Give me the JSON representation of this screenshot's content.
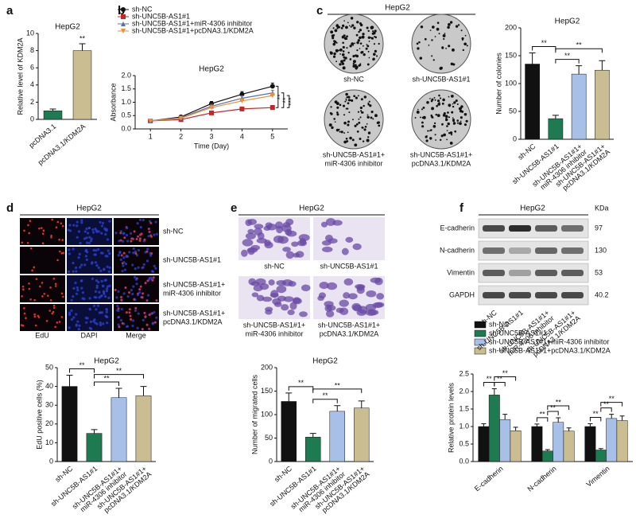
{
  "panel_labels": [
    "a",
    "b",
    "c",
    "d",
    "e",
    "f"
  ],
  "colony_assay": {
    "title": "HepG2",
    "labels": [
      [
        "sh-NC"
      ],
      [
        "sh-UNC5B-AS1#1"
      ],
      [
        "sh-UNC5B-AS1#1+",
        "miR-4306 inhibitor"
      ],
      [
        "sh-UNC5B-AS1#1+",
        "pcDNA3.1/KDM2A"
      ]
    ]
  },
  "edu_assay": {
    "title": "HepG2",
    "columns": [
      "EdU",
      "DAPI",
      "Merge"
    ],
    "rows": [
      [
        "sh-NC"
      ],
      [
        "sh-UNC5B-AS1#1"
      ],
      [
        "sh-UNC5B-AS1#1+",
        "miR-4306 inhibitor"
      ],
      [
        "sh-UNC5B-AS1#1+",
        "pcDNA3.1/KDM2A"
      ]
    ]
  },
  "transwell_assay": {
    "title": "HepG2",
    "labels": [
      [
        "sh-NC"
      ],
      [
        "sh-UNC5B-AS1#1"
      ],
      [
        "sh-UNC5B-AS1#1+",
        "miR-4306 inhibitor"
      ],
      [
        "sh-UNC5B-AS1#1+",
        "pcDNA3.1/KDM2A"
      ]
    ]
  },
  "western_blot": {
    "title": "HepG2",
    "unit": "KDa",
    "proteins": [
      "E-cadherin",
      "N-cadherin",
      "Vimentin",
      "GAPDH"
    ],
    "sizes": [
      97,
      130,
      53,
      40.2
    ],
    "lanes": [
      [
        "sh-NC"
      ],
      [
        "sh-UNC5B-AS1#1"
      ],
      [
        "sh-UNC5B-AS1#1+",
        "miR-4306 inhibitor"
      ],
      [
        "sh-UNC5B-AS1#1+",
        "pcDNA3.1/KDM2A"
      ]
    ]
  },
  "chart_data": [
    {
      "type": "bar",
      "title": "HepG2",
      "ylabel": "Relative level of KDM2A",
      "categories": [
        "pcDNA3.1",
        "pcDNA3.1/KDM2A"
      ],
      "values": [
        1,
        8
      ],
      "errors": [
        0.2,
        0.8
      ],
      "colors": [
        "#1e7a50",
        "#c9bd91"
      ],
      "ylim": [
        0,
        10
      ],
      "yticks": [
        0,
        2,
        4,
        6,
        8,
        10
      ],
      "annotations": [
        "**"
      ]
    },
    {
      "type": "line",
      "title": "HepG2",
      "xlabel": "Time (Day)",
      "ylabel": "Absorbance",
      "x": [
        1,
        2,
        3,
        4,
        5
      ],
      "xlim": [
        0.5,
        5.5
      ],
      "xticks": [
        1,
        2,
        3,
        4,
        5
      ],
      "ylim": [
        0,
        2
      ],
      "yticks": [
        {
          "value": 0,
          "label": "0.0"
        },
        0.5,
        {
          "value": 1,
          "label": "1.0"
        },
        1.5,
        {
          "value": 2,
          "label": "2.0"
        }
      ],
      "series": [
        {
          "name": "sh-NC",
          "color": "#111111",
          "marker": "circle",
          "values": [
            0.3,
            0.45,
            0.95,
            1.3,
            1.6
          ],
          "errors": [
            0.02,
            0.05,
            0.08,
            0.1,
            0.12
          ]
        },
        {
          "name": "sh-UNC5B-AS1#1",
          "color": "#c0282a",
          "marker": "square",
          "values": [
            0.3,
            0.35,
            0.6,
            0.75,
            0.8
          ],
          "errors": [
            0.02,
            0.03,
            0.05,
            0.06,
            0.08
          ]
        },
        {
          "name": "sh-UNC5B-AS1#1+miR-4306 inhibitor",
          "color": "#5a6fa8",
          "marker": "triangle",
          "values": [
            0.3,
            0.42,
            0.85,
            1.15,
            1.35
          ],
          "errors": [
            0.02,
            0.04,
            0.07,
            0.09,
            0.1
          ]
        },
        {
          "name": "sh-UNC5B-AS1#1+pcDNA3.1/KDM2A",
          "color": "#e8903a",
          "marker": "triangle-down",
          "values": [
            0.3,
            0.4,
            0.8,
            1.05,
            1.25
          ],
          "errors": [
            0.02,
            0.04,
            0.07,
            0.08,
            0.1
          ]
        }
      ],
      "annotations": [
        "**",
        "**",
        "***"
      ]
    },
    {
      "type": "bar",
      "title": "HepG2",
      "ylabel": "Number of colonies",
      "categories": [
        [
          "sh-NC"
        ],
        [
          "sh-UNC5B-AS1#1"
        ],
        [
          "sh-UNC5B-AS1#1+",
          "miR-4306 inhibitor"
        ],
        [
          "sh-UNC5B-AS1#1+",
          "pcDNA3.1/KDM2A"
        ]
      ],
      "values": [
        135,
        37,
        117,
        124
      ],
      "errors": [
        20,
        6,
        15,
        17
      ],
      "colors": [
        "#111111",
        "#1e7a50",
        "#a8c0e8",
        "#c9bd91"
      ],
      "ylim": [
        0,
        200
      ],
      "yticks": [
        0,
        50,
        100,
        150,
        200
      ],
      "annotations": [
        "**",
        "**",
        "**"
      ]
    },
    {
      "type": "bar",
      "title": "HepG2",
      "ylabel": "EdU positive cells (%)",
      "categories": [
        [
          "sh-NC"
        ],
        [
          "sh-UNC5B-AS1#1"
        ],
        [
          "sh-UNC5B-AS1#1+",
          "miR-4306 inhibitor"
        ],
        [
          "sh-UNC5B-AS1#1+",
          "pcDNA3.1/KDM2A"
        ]
      ],
      "values": [
        40,
        15,
        34,
        35
      ],
      "errors": [
        6,
        2,
        5,
        5
      ],
      "colors": [
        "#111111",
        "#1e7a50",
        "#a8c0e8",
        "#c9bd91"
      ],
      "ylim": [
        0,
        50
      ],
      "yticks": [
        0,
        10,
        20,
        30,
        40,
        50
      ],
      "annotations": [
        "**",
        "**",
        "**"
      ]
    },
    {
      "type": "bar",
      "title": "HepG2",
      "ylabel": "Number of migrated cells",
      "categories": [
        [
          "sh-NC"
        ],
        [
          "sh-UNC5B-AS1#1"
        ],
        [
          "sh-UNC5B-AS1#1+",
          "miR-4306 inhibitor"
        ],
        [
          "sh-UNC5B-AS1#1+",
          "pcDNA3.1/KDM2A"
        ]
      ],
      "values": [
        128,
        52,
        107,
        114
      ],
      "errors": [
        18,
        8,
        12,
        15
      ],
      "colors": [
        "#111111",
        "#1e7a50",
        "#a8c0e8",
        "#c9bd91"
      ],
      "ylim": [
        0,
        200
      ],
      "yticks": [
        0,
        50,
        100,
        150,
        200
      ],
      "annotations": [
        "**",
        "**",
        "**"
      ]
    },
    {
      "type": "bar",
      "ylabel": "Relative protein levels",
      "categories": [
        "E-cadherin",
        "N-cadherin",
        "Vimentin"
      ],
      "ylim": [
        0,
        2.5
      ],
      "yticks": [
        {
          "value": 0,
          "label": "0.0"
        },
        0.5,
        {
          "value": 1,
          "label": "1.0"
        },
        1.5,
        {
          "value": 2,
          "label": "2.0"
        },
        2.5
      ],
      "series": [
        {
          "name": "sh-NC",
          "color": "#111111",
          "values": [
            1.0,
            1.0,
            1.0
          ],
          "errors": [
            0.08,
            0.07,
            0.08
          ]
        },
        {
          "name": "sh-UNC5B-AS1#1",
          "color": "#1e7a50",
          "values": [
            1.9,
            0.3,
            0.33
          ],
          "errors": [
            0.18,
            0.04,
            0.04
          ]
        },
        {
          "name": "sh-UNC5B-AS1#1+miR-4306 inhibitor",
          "color": "#a8c0e8",
          "values": [
            1.2,
            1.12,
            1.23
          ],
          "errors": [
            0.15,
            0.13,
            0.12
          ]
        },
        {
          "name": "sh-UNC5B-AS1#1+pcDNA3.1/KDM2A",
          "color": "#c9bd91",
          "values": [
            0.88,
            0.87,
            1.17
          ],
          "errors": [
            0.1,
            0.09,
            0.13
          ]
        }
      ],
      "annotations": [
        "**",
        "**",
        "**",
        "**",
        "**",
        "**",
        "**",
        "**",
        "**"
      ]
    }
  ]
}
